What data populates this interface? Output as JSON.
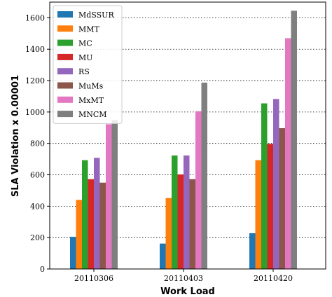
{
  "chart_data": {
    "type": "bar",
    "xlabel": "Work Load",
    "ylabel": "SLA Violation x 0.00001",
    "ylim": [
      0,
      1700
    ],
    "yticks": [
      0,
      200,
      400,
      600,
      800,
      1000,
      1200,
      1400,
      1600
    ],
    "grid": "horizontal dotted",
    "legend_position": "top-left",
    "categories": [
      "20110306",
      "20110403",
      "20110420"
    ],
    "series": [
      {
        "name": "MdSSUR",
        "color": "#1f77b4",
        "values": [
          205,
          162,
          228
        ]
      },
      {
        "name": "MMT",
        "color": "#ff7f0e",
        "values": [
          440,
          452,
          693
        ]
      },
      {
        "name": "MC",
        "color": "#2ca02c",
        "values": [
          693,
          723,
          1055
        ]
      },
      {
        "name": "MU",
        "color": "#d62728",
        "values": [
          572,
          602,
          797
        ]
      },
      {
        "name": "RS",
        "color": "#9467bd",
        "values": [
          708,
          723,
          1083
        ]
      },
      {
        "name": "MuMs",
        "color": "#8c564b",
        "values": [
          550,
          572,
          897
        ]
      },
      {
        "name": "MxMT",
        "color": "#e377c2",
        "values": [
          922,
          1005,
          1470
        ]
      },
      {
        "name": "MNCM",
        "color": "#7f7f7f",
        "values": [
          950,
          1187,
          1645
        ]
      }
    ]
  }
}
